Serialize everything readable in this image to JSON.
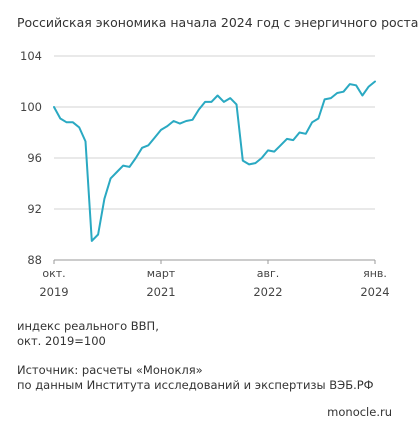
{
  "header": {
    "title": "Российская экономика начала 2024 год с энергичного роста"
  },
  "chart_data": {
    "type": "line",
    "title": "Российская экономика начала 2024 год с энергичного роста",
    "xlabel": "",
    "ylabel": "",
    "ylim": [
      88,
      104
    ],
    "yticks": [
      88,
      92,
      96,
      100,
      104
    ],
    "x_start": "2019-10",
    "x_end": "2024-01",
    "x_tick_labels": [
      {
        "month": "окт.",
        "year": "2019",
        "x": "2019-10"
      },
      {
        "month": "март",
        "year": "2021",
        "x": "2021-03"
      },
      {
        "month": "авг.",
        "year": "2022",
        "x": "2022-08"
      },
      {
        "month": "янв.",
        "year": "2024",
        "x": "2024-01"
      }
    ],
    "grid": "horizontal",
    "series": [
      {
        "color": "#2aa9c2",
        "x": [
          "2019-10",
          "2019-11",
          "2019-12",
          "2020-01",
          "2020-02",
          "2020-03",
          "2020-04",
          "2020-05",
          "2020-06",
          "2020-07",
          "2020-08",
          "2020-09",
          "2020-10",
          "2020-11",
          "2020-12",
          "2021-01",
          "2021-02",
          "2021-03",
          "2021-04",
          "2021-05",
          "2021-06",
          "2021-07",
          "2021-08",
          "2021-09",
          "2021-10",
          "2021-11",
          "2021-12",
          "2022-01",
          "2022-02",
          "2022-03",
          "2022-04",
          "2022-05",
          "2022-06",
          "2022-07",
          "2022-08",
          "2022-09",
          "2022-10",
          "2022-11",
          "2022-12",
          "2023-01",
          "2023-02",
          "2023-03",
          "2023-04",
          "2023-05",
          "2023-06",
          "2023-07",
          "2023-08",
          "2023-09",
          "2023-10",
          "2023-11",
          "2023-12",
          "2024-01"
        ],
        "values": [
          100.0,
          99.1,
          98.8,
          98.8,
          98.4,
          97.3,
          89.5,
          90.0,
          92.8,
          94.4,
          94.9,
          95.4,
          95.3,
          96.0,
          96.8,
          97.0,
          97.6,
          98.2,
          98.5,
          98.9,
          98.7,
          98.9,
          99.0,
          99.8,
          100.4,
          100.4,
          100.9,
          100.4,
          100.7,
          100.2,
          95.8,
          95.5,
          95.6,
          96.0,
          96.6,
          96.5,
          97.0,
          97.5,
          97.4,
          98.0,
          97.9,
          98.8,
          99.1,
          100.6,
          100.7,
          101.1,
          101.2,
          101.8,
          101.7,
          100.9,
          101.6,
          102.0
        ]
      }
    ]
  },
  "notes": {
    "index_line1": "индекс реального ВВП,",
    "index_line2": "окт. 2019=100",
    "source_line1": "Источник: расчеты «Монокля»",
    "source_line2": "по данным Института исследований и экспертизы ВЭБ.РФ"
  },
  "footer": {
    "site": "monocle.ru"
  }
}
